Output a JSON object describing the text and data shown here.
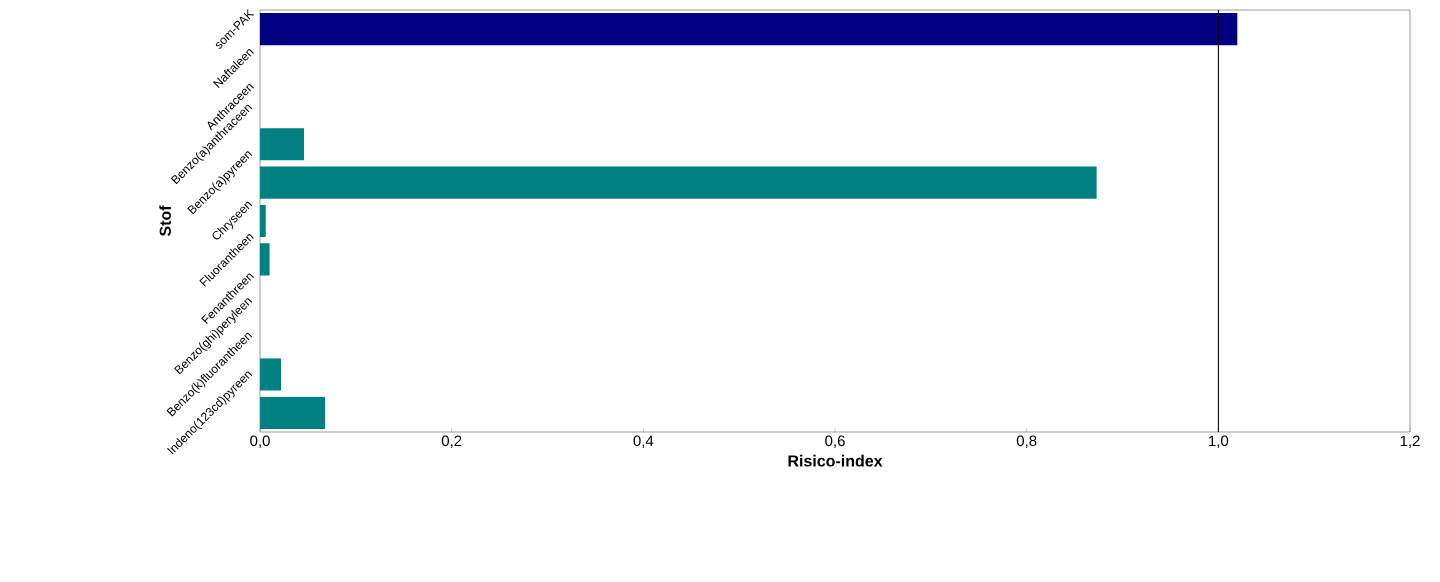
{
  "chart_data": {
    "type": "bar",
    "orientation": "horizontal",
    "xlabel": "Risico-index",
    "ylabel": "Stof",
    "categories": [
      "som-PAK",
      "Naftaleen",
      "Anthraceen",
      "Benzo(a)anthraceen",
      "Benzo(a)pyreen",
      "Chryseen",
      "Fluorantheen",
      "Fenanthreen",
      "Benzo(ghi)peryleen",
      "Benzo(k)fluorantheen",
      "Indeno(123cd)pyreen"
    ],
    "values": [
      1.02,
      null,
      null,
      0.046,
      0.873,
      0.006,
      0.01,
      null,
      null,
      0.022,
      0.068
    ],
    "colors": [
      "#000080",
      "#008080",
      "#008080",
      "#008080",
      "#008080",
      "#008080",
      "#008080",
      "#008080",
      "#008080",
      "#008080",
      "#008080"
    ],
    "xlim": [
      0,
      1.2
    ],
    "xticks": [
      {
        "value": 0,
        "label": "0,0"
      },
      {
        "value": 0.2,
        "label": "0,2"
      },
      {
        "value": 0.4,
        "label": "0,4"
      },
      {
        "value": 0.6,
        "label": "0,6"
      },
      {
        "value": 0.8,
        "label": "0,8"
      },
      {
        "value": 1.0,
        "label": "1,0"
      },
      {
        "value": 1.2,
        "label": "1,2"
      }
    ],
    "ref_lines": [
      {
        "axis": "x",
        "value": 1.0,
        "color": "#000000"
      }
    ],
    "grid": false
  }
}
